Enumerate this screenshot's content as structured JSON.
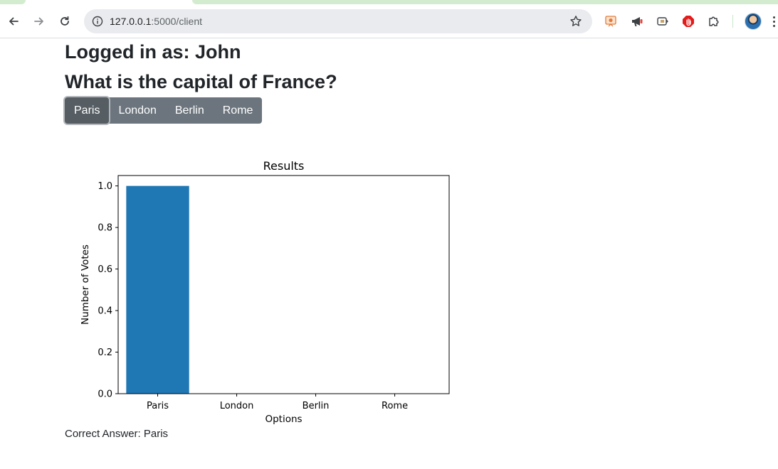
{
  "browser": {
    "url_host": "127.0.0.1",
    "url_path": ":5000/client",
    "icons": [
      "back-arrow-icon",
      "forward-arrow-icon",
      "reload-icon",
      "site-info-icon",
      "bookmark-star-icon",
      "extensions-puzzle-icon",
      "profile-avatar",
      "menu-kebab-icon"
    ]
  },
  "page": {
    "logged_in": "Logged in as: John",
    "question": "What is the capital of France?",
    "options": [
      {
        "label": "Paris",
        "active": true
      },
      {
        "label": "London",
        "active": false
      },
      {
        "label": "Berlin",
        "active": false
      },
      {
        "label": "Rome",
        "active": false
      }
    ],
    "correct_answer": "Correct Answer: Paris"
  },
  "colors": {
    "button": "#6c757d",
    "button_active": "#565e64",
    "bar": "#1f77b4"
  },
  "chart_data": {
    "type": "bar",
    "title": "Results",
    "xlabel": "Options",
    "ylabel": "Number of Votes",
    "categories": [
      "Paris",
      "London",
      "Berlin",
      "Rome"
    ],
    "values": [
      1,
      0,
      0,
      0
    ],
    "ylim": [
      0,
      1.05
    ],
    "yticks": [
      "0.0",
      "0.2",
      "0.4",
      "0.6",
      "0.8",
      "1.0"
    ],
    "grid": false
  }
}
